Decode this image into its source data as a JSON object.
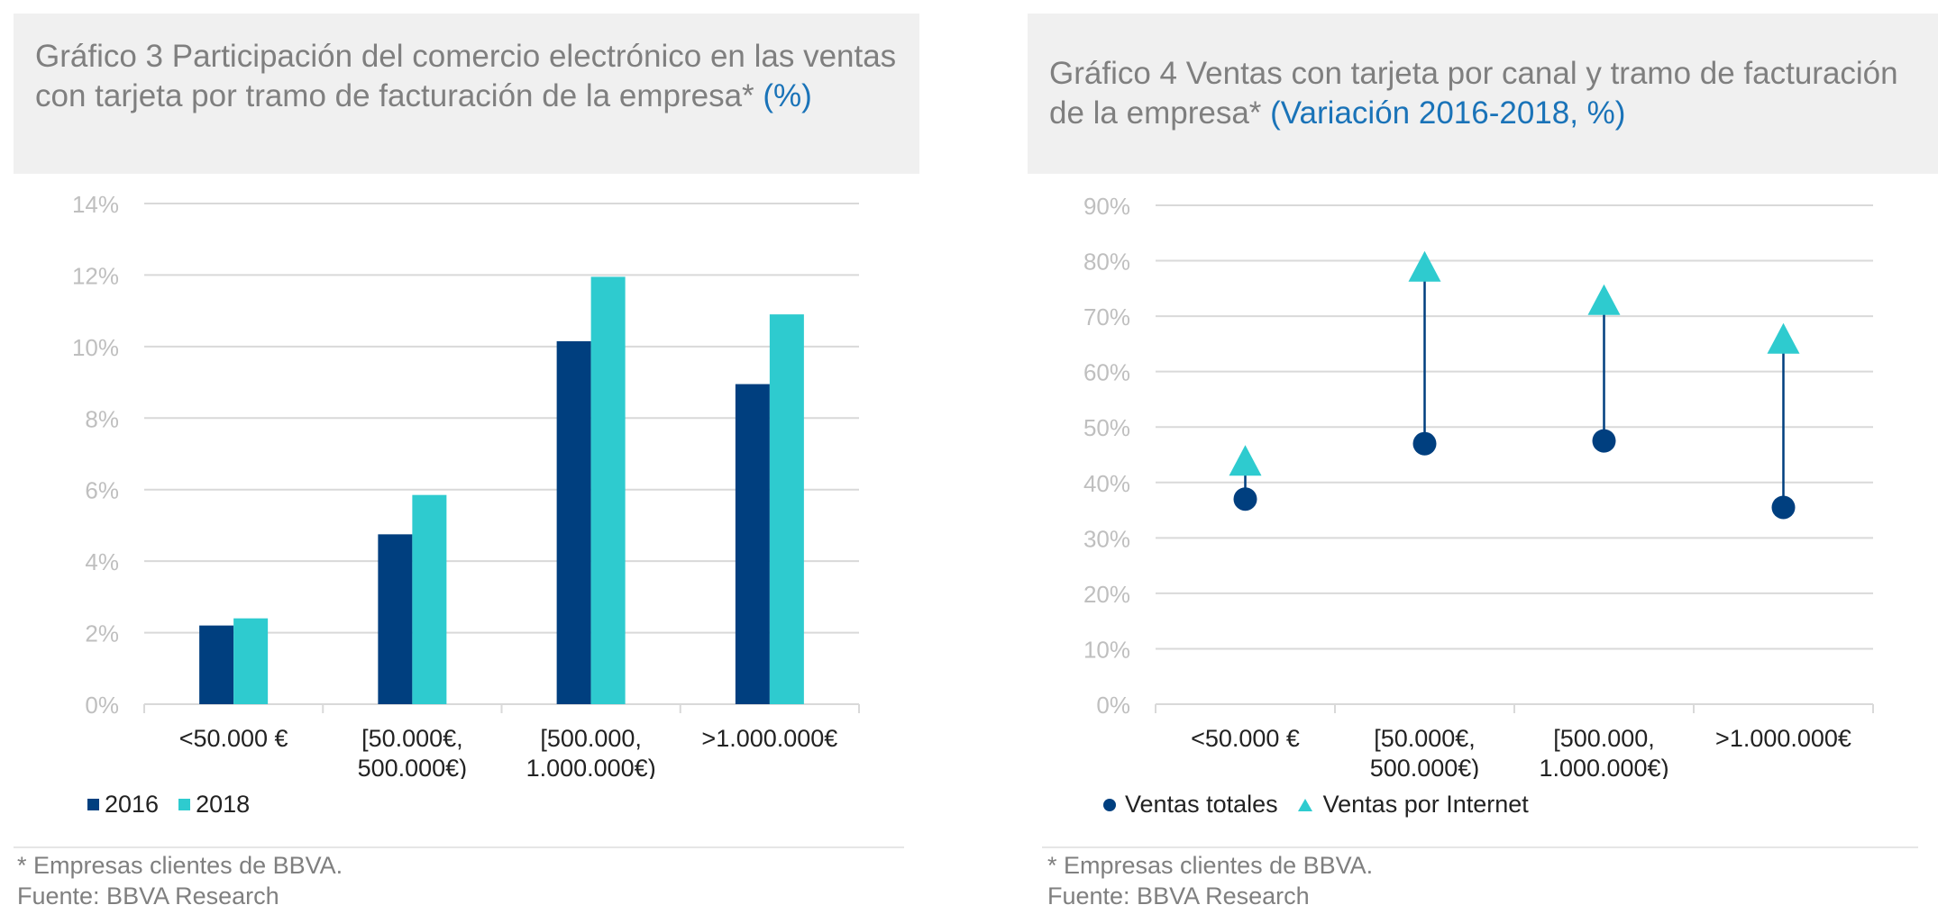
{
  "colors": {
    "series_2016": "#003f7f",
    "series_2018": "#2ecbcf",
    "title_unit": "#1a73b8",
    "grid": "#d9d9d9",
    "tick_text": "#bfbfbf"
  },
  "chart_left": {
    "title_main": "Gráfico 3 Participación del comercio electrónico en las ventas con tarjeta por tramo de facturación de la empresa*",
    "title_unit": "(%)",
    "legend": [
      "2016",
      "2018"
    ],
    "footnote": "* Empresas clientes de BBVA.",
    "source": "Fuente: BBVA Research"
  },
  "chart_right": {
    "title_main": "Gráfico 4 Ventas con tarjeta por canal y tramo de facturación de la empresa*",
    "title_unit": "(Variación 2016-2018, %)",
    "legend": [
      "Ventas totales",
      "Ventas por Internet"
    ],
    "footnote": "* Empresas clientes de BBVA.",
    "source": "Fuente: BBVA Research"
  },
  "chart_data": [
    {
      "type": "bar",
      "categories": [
        [
          "<50.000  €"
        ],
        [
          "[50.000€,",
          "500.000€)"
        ],
        [
          "[500.000,",
          "1.000.000€)"
        ],
        [
          ">1.000.000€"
        ]
      ],
      "series": [
        {
          "name": "2016",
          "values": [
            2.2,
            4.75,
            10.15,
            8.95
          ]
        },
        {
          "name": "2018",
          "values": [
            2.4,
            5.85,
            11.95,
            10.9
          ]
        }
      ],
      "ylim": [
        0,
        14
      ],
      "yticks": [
        0,
        2,
        4,
        6,
        8,
        10,
        12,
        14
      ],
      "ytick_labels": [
        "0%",
        "2%",
        "4%",
        "6%",
        "8%",
        "10%",
        "12%",
        "14%"
      ],
      "grid": true,
      "legend_position": "bottom-left"
    },
    {
      "type": "scatter",
      "categories": [
        [
          "<50.000  €"
        ],
        [
          "[50.000€,",
          "500.000€)"
        ],
        [
          "[500.000,",
          "1.000.000€)"
        ],
        [
          ">1.000.000€"
        ]
      ],
      "series": [
        {
          "name": "Ventas totales",
          "marker": "circle",
          "values": [
            37,
            47,
            47.5,
            35.5
          ]
        },
        {
          "name": "Ventas por Internet",
          "marker": "triangle",
          "values": [
            43.5,
            78.5,
            72.5,
            65.5
          ]
        }
      ],
      "connector_lines": true,
      "ylim": [
        0,
        90
      ],
      "yticks": [
        0,
        10,
        20,
        30,
        40,
        50,
        60,
        70,
        80,
        90
      ],
      "ytick_labels": [
        "0%",
        "10%",
        "20%",
        "30%",
        "40%",
        "50%",
        "60%",
        "70%",
        "80%",
        "90%"
      ],
      "grid": true,
      "legend_position": "bottom-left"
    }
  ]
}
